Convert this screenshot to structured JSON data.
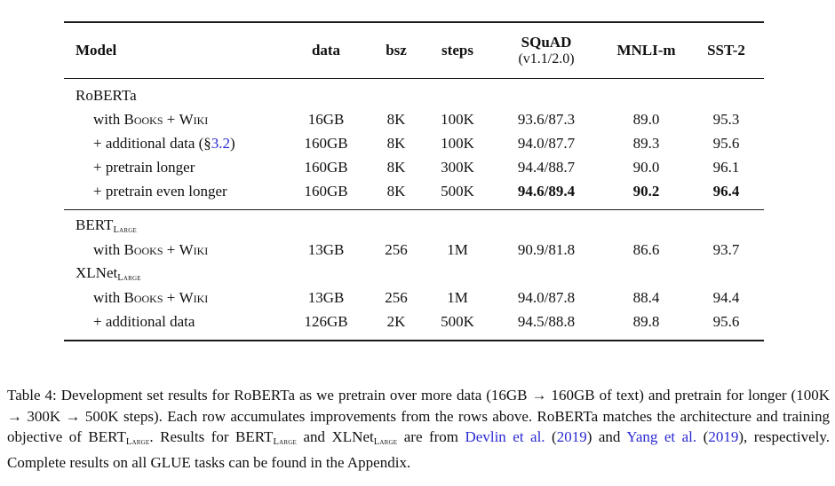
{
  "colors": {
    "text": "#111111",
    "link_blue": "#2a2ad2",
    "rule": "#1a1a1a"
  },
  "table": {
    "columns": [
      {
        "key": "model",
        "label": "Model",
        "align": "left"
      },
      {
        "key": "data",
        "label": "data"
      },
      {
        "key": "bsz",
        "label": "bsz"
      },
      {
        "key": "steps",
        "label": "steps"
      },
      {
        "key": "squad",
        "label": "SQuAD",
        "sublabel": "(v1.1/2.0)"
      },
      {
        "key": "mnli",
        "label": "MNLI-m"
      },
      {
        "key": "sst2",
        "label": "SST-2"
      }
    ],
    "rows": [
      {
        "type": "section",
        "parts": [
          {
            "text": "RoBERTa"
          }
        ]
      },
      {
        "type": "data",
        "indent": true,
        "parts": [
          {
            "text": "with "
          },
          {
            "text": "Books",
            "sc": true
          },
          {
            "text": " + "
          },
          {
            "text": "Wiki",
            "sc": true
          }
        ],
        "cells": [
          "16GB",
          "8K",
          "100K",
          "93.6/87.3",
          "89.0",
          "95.3"
        ]
      },
      {
        "type": "data",
        "indent": true,
        "parts": [
          {
            "text": "+ additional data (§"
          },
          {
            "text": "3.2",
            "link": true
          },
          {
            "text": ")"
          }
        ],
        "cells": [
          "160GB",
          "8K",
          "100K",
          "94.0/87.7",
          "89.3",
          "95.6"
        ]
      },
      {
        "type": "data",
        "indent": true,
        "parts": [
          {
            "text": "+ pretrain longer"
          }
        ],
        "cells": [
          "160GB",
          "8K",
          "300K",
          "94.4/88.7",
          "90.0",
          "96.1"
        ]
      },
      {
        "type": "data",
        "indent": true,
        "parts": [
          {
            "text": "+ pretrain even longer"
          }
        ],
        "cells": [
          "160GB",
          "8K",
          "500K",
          "94.6/89.4",
          "90.2",
          "96.4"
        ],
        "boldCells": [
          3,
          4,
          5
        ]
      },
      {
        "type": "section",
        "rule": true,
        "parts": [
          {
            "text": "BERT"
          },
          {
            "text": "Large",
            "sub": true
          }
        ]
      },
      {
        "type": "data",
        "indent": true,
        "parts": [
          {
            "text": "with "
          },
          {
            "text": "Books",
            "sc": true
          },
          {
            "text": " + "
          },
          {
            "text": "Wiki",
            "sc": true
          }
        ],
        "cells": [
          "13GB",
          "256",
          "1M",
          "90.9/81.8",
          "86.6",
          "93.7"
        ]
      },
      {
        "type": "section",
        "parts": [
          {
            "text": "XLNet"
          },
          {
            "text": "Large",
            "sub": true
          }
        ]
      },
      {
        "type": "data",
        "indent": true,
        "parts": [
          {
            "text": "with "
          },
          {
            "text": "Books",
            "sc": true
          },
          {
            "text": " + "
          },
          {
            "text": "Wiki",
            "sc": true
          }
        ],
        "cells": [
          "13GB",
          "256",
          "1M",
          "94.0/87.8",
          "88.4",
          "94.4"
        ]
      },
      {
        "type": "data",
        "indent": true,
        "parts": [
          {
            "text": "+ additional data"
          }
        ],
        "cells": [
          "126GB",
          "2K",
          "500K",
          "94.5/88.8",
          "89.8",
          "95.6"
        ]
      }
    ]
  },
  "caption": {
    "parts": [
      {
        "text": "Table 4: Development set results for RoBERTa as we pretrain over more data (16GB → 160GB of text) and pretrain for longer (100K → 300K → 500K steps). Each row accumulates improvements from the rows above. RoBERTa matches the architecture and training objective of BERT"
      },
      {
        "text": "Large",
        "sub": true
      },
      {
        "text": ". Results for BERT"
      },
      {
        "text": "Large",
        "sub": true
      },
      {
        "text": " and XLNet"
      },
      {
        "text": "Large",
        "sub": true
      },
      {
        "text": " are from "
      },
      {
        "text": "Devlin et al.",
        "link": true
      },
      {
        "text": " ("
      },
      {
        "text": "2019",
        "link": true
      },
      {
        "text": ") and "
      },
      {
        "text": "Yang et al.",
        "link": true
      },
      {
        "text": " ("
      },
      {
        "text": "2019",
        "link": true
      },
      {
        "text": "), respectively. Complete results on all GLUE tasks can be found in the Appendix."
      }
    ]
  }
}
